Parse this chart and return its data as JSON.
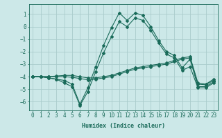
{
  "xlabel": "Humidex (Indice chaleur)",
  "ylabel": "",
  "background_color": "#cce8e8",
  "grid_color": "#aacccc",
  "line_color": "#1a6b5a",
  "xlim": [
    -0.5,
    23.5
  ],
  "ylim": [
    -6.7,
    1.8
  ],
  "yticks": [
    1,
    0,
    -1,
    -2,
    -3,
    -4,
    -5,
    -6
  ],
  "xticks": [
    0,
    1,
    2,
    3,
    4,
    5,
    6,
    7,
    8,
    9,
    10,
    11,
    12,
    13,
    14,
    15,
    16,
    17,
    18,
    19,
    20,
    21,
    22,
    23
  ],
  "lines": [
    {
      "x": [
        0,
        1,
        2,
        3,
        4,
        5,
        6,
        7,
        8,
        9,
        10,
        11,
        12,
        13,
        14,
        15,
        16,
        17,
        18,
        19,
        20,
        21,
        22,
        23
      ],
      "y": [
        -4,
        -4,
        -4.1,
        -4.2,
        -4.3,
        -4.6,
        -6.2,
        -4.9,
        -3.2,
        -1.5,
        -0.1,
        1.1,
        0.5,
        1.1,
        0.9,
        0.0,
        -1.1,
        -2.0,
        -2.3,
        -3.3,
        -2.6,
        -4.8,
        -4.8,
        -4.4
      ]
    },
    {
      "x": [
        0,
        1,
        2,
        3,
        4,
        5,
        6,
        7,
        8,
        9,
        10,
        11,
        12,
        13,
        14,
        15,
        16,
        17,
        18,
        19,
        20,
        21,
        22,
        23
      ],
      "y": [
        -4,
        -4,
        -4.1,
        -4.2,
        -4.5,
        -4.8,
        -6.3,
        -5.2,
        -3.6,
        -2.1,
        -0.8,
        0.4,
        0.0,
        0.7,
        0.5,
        -0.3,
        -1.3,
        -2.2,
        -2.5,
        -3.5,
        -3.2,
        -4.9,
        -4.9,
        -4.5
      ]
    },
    {
      "x": [
        0,
        1,
        2,
        3,
        4,
        5,
        6,
        7,
        8,
        9,
        10,
        11,
        12,
        13,
        14,
        15,
        16,
        17,
        18,
        19,
        20,
        21,
        22,
        23
      ],
      "y": [
        -4,
        -4,
        -4.0,
        -3.95,
        -3.9,
        -3.9,
        -4.0,
        -4.1,
        -4.1,
        -4.0,
        -3.9,
        -3.7,
        -3.5,
        -3.3,
        -3.2,
        -3.1,
        -3.0,
        -2.9,
        -2.7,
        -2.5,
        -2.4,
        -4.5,
        -4.6,
        -4.2
      ]
    },
    {
      "x": [
        0,
        1,
        2,
        3,
        4,
        5,
        6,
        7,
        8,
        9,
        10,
        11,
        12,
        13,
        14,
        15,
        16,
        17,
        18,
        19,
        20,
        21,
        22,
        23
      ],
      "y": [
        -4,
        -4,
        -4.0,
        -4.0,
        -4.0,
        -4.05,
        -4.15,
        -4.25,
        -4.2,
        -4.1,
        -4.0,
        -3.8,
        -3.6,
        -3.4,
        -3.3,
        -3.2,
        -3.1,
        -3.0,
        -2.8,
        -2.6,
        -2.5,
        -4.6,
        -4.65,
        -4.3
      ]
    }
  ]
}
